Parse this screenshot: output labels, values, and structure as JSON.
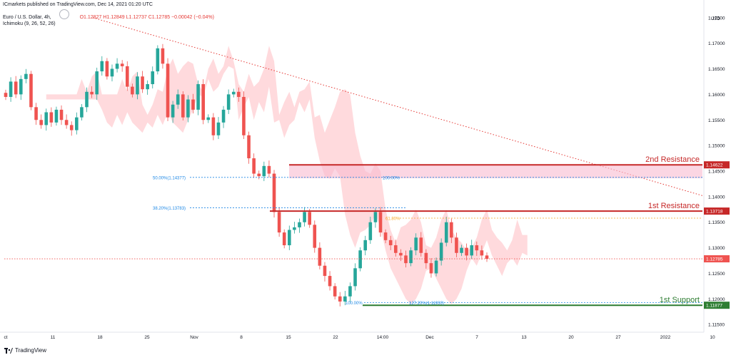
{
  "header": {
    "publisher": "ICmarkets published on TradingView.com, Dec 14, 2021 01:20 UTC",
    "symbol": "Euro / U.S. Dollar, 4h,",
    "ohlc": "O1.12827 H1.12849 L1.12737 C1.12785 −0.00042 (−0.04%)",
    "indicator": "Ichimoku (9, 26, 52, 26)"
  },
  "footer": {
    "brand": "TradingView",
    "logo_icon": "tradingview-logo-icon"
  },
  "colors": {
    "bull": "#26a69a",
    "bear": "#ef5350",
    "resistance": "#c62828",
    "support": "#2e7d32",
    "fib": "#1e88e5",
    "trend": "#e53935",
    "cloud": "#ffcdd2",
    "cloud_green": "#c8e6c9"
  },
  "chart_data": {
    "type": "candlestick",
    "price_unit": "USD",
    "ylim": [
      1.1135,
      1.1765
    ],
    "y_ticks": [
      "1.17500",
      "1.17000",
      "1.16500",
      "1.16000",
      "1.15500",
      "1.15000",
      "1.14500",
      "1.14000",
      "1.13500",
      "1.13000",
      "1.12500",
      "1.12000",
      "1.11500"
    ],
    "x_tick_labels": [
      "ct",
      "11",
      "18",
      "25",
      "Nov",
      "8",
      "15",
      "22",
      "14:00",
      "Dec",
      "7",
      "13",
      "20",
      "27",
      "2022",
      "10"
    ],
    "close_path": [
      1.1595,
      1.1625,
      1.16,
      1.163,
      1.164,
      1.1575,
      1.155,
      1.154,
      1.1565,
      1.1545,
      1.157,
      1.155,
      1.154,
      1.153,
      1.1555,
      1.1575,
      1.1605,
      1.16,
      1.1645,
      1.1665,
      1.1635,
      1.165,
      1.166,
      1.1655,
      1.1615,
      1.16,
      1.1635,
      1.161,
      1.162,
      1.1645,
      1.169,
      1.166,
      1.1555,
      1.158,
      1.16,
      1.1555,
      1.159,
      1.157,
      1.162,
      1.155,
      1.1555,
      1.152,
      1.1545,
      1.157,
      1.16,
      1.1605,
      1.1595,
      1.152,
      1.1475,
      1.1445,
      1.144,
      1.146,
      1.1445,
      1.137,
      1.133,
      1.1305,
      1.1335,
      1.134,
      1.135,
      1.137,
      1.1345,
      1.13,
      1.1265,
      1.1245,
      1.1225,
      1.1205,
      1.1195,
      1.1205,
      1.1225,
      1.126,
      1.1295,
      1.1315,
      1.135,
      1.137,
      1.133,
      1.1315,
      1.1305,
      1.129,
      1.1285,
      1.127,
      1.1295,
      1.132,
      1.129,
      1.127,
      1.125,
      1.1275,
      1.131,
      1.135,
      1.132,
      1.129,
      1.13,
      1.1285,
      1.1305,
      1.1295,
      1.1285,
      1.12785
    ],
    "last_price": "1.12785",
    "levels": [
      {
        "name": "2nd Resistance",
        "price": 1.14622,
        "price_label": "1.14622",
        "type": "resistance"
      },
      {
        "name": "1st Resistance",
        "price": 1.13718,
        "price_label": "1.13718",
        "type": "resistance"
      },
      {
        "name": "1st Support",
        "price": 1.11877,
        "price_label": "1.11877",
        "type": "support"
      }
    ],
    "fib_labels": [
      {
        "text": "50.00%(1.14377)",
        "price": 1.14377,
        "side": "left"
      },
      {
        "text": "100.00%",
        "price": 1.14377,
        "side": "right"
      },
      {
        "text": "38.20%(1.13783)",
        "price": 1.13783,
        "side": "left"
      },
      {
        "text": "61.80%",
        "price": 1.1358,
        "side": "right"
      },
      {
        "text": "100.00%",
        "price": 1.1193,
        "side": "left"
      },
      {
        "text": "127.20%(1.11930)",
        "price": 1.1193,
        "side": "right"
      }
    ],
    "trendline": {
      "from_price": 1.175,
      "to_price": 1.1402,
      "style": "dotted"
    }
  }
}
